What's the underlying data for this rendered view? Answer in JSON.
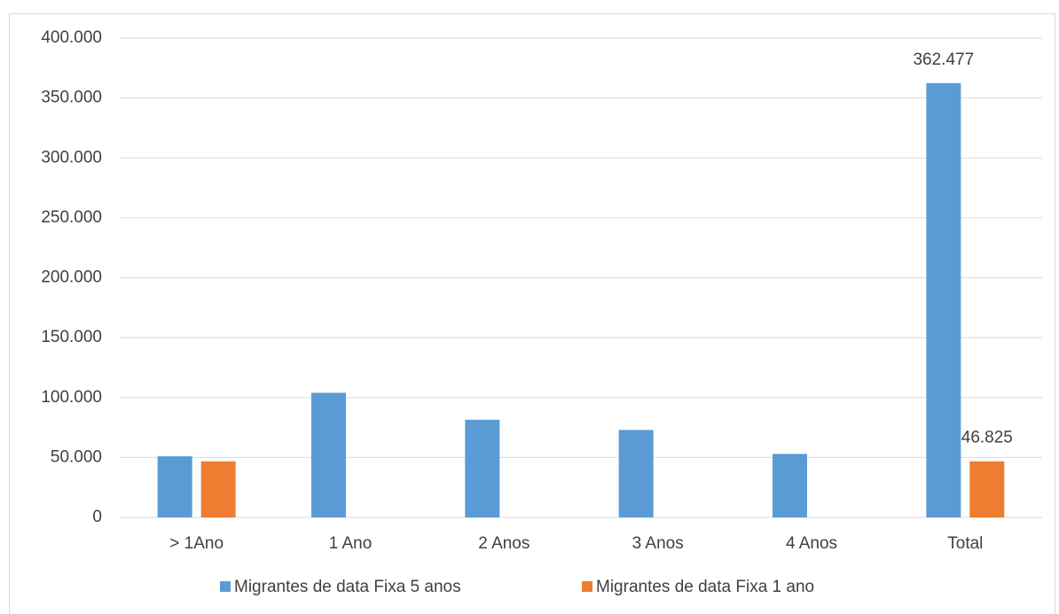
{
  "chart_data": {
    "type": "bar",
    "categories": [
      "> 1Ano",
      "1 Ano",
      "2 Anos",
      "3 Anos",
      "4 Anos",
      "Total"
    ],
    "series": [
      {
        "name": "Migrantes de data Fixa 5 anos",
        "color": "#5b9bd5",
        "values": [
          51000,
          104000,
          81500,
          73000,
          53000,
          362477
        ],
        "value_labels": [
          null,
          null,
          null,
          null,
          null,
          "362.477"
        ]
      },
      {
        "name": "Migrantes de data Fixa 1 ano",
        "color": "#ed7d31",
        "values": [
          46825,
          null,
          null,
          null,
          null,
          46825
        ],
        "value_labels": [
          null,
          null,
          null,
          null,
          null,
          "46.825"
        ]
      }
    ],
    "ylim": [
      0,
      400000
    ],
    "yticks": [
      {
        "value": 0,
        "label": "0"
      },
      {
        "value": 50000,
        "label": "50.000"
      },
      {
        "value": 100000,
        "label": "100.000"
      },
      {
        "value": 150000,
        "label": "150.000"
      },
      {
        "value": 200000,
        "label": "200.000"
      },
      {
        "value": 250000,
        "label": "250.000"
      },
      {
        "value": 300000,
        "label": "300.000"
      },
      {
        "value": 350000,
        "label": "350.000"
      },
      {
        "value": 400000,
        "label": "400.000"
      }
    ],
    "grid": true,
    "legend": "bottom"
  }
}
